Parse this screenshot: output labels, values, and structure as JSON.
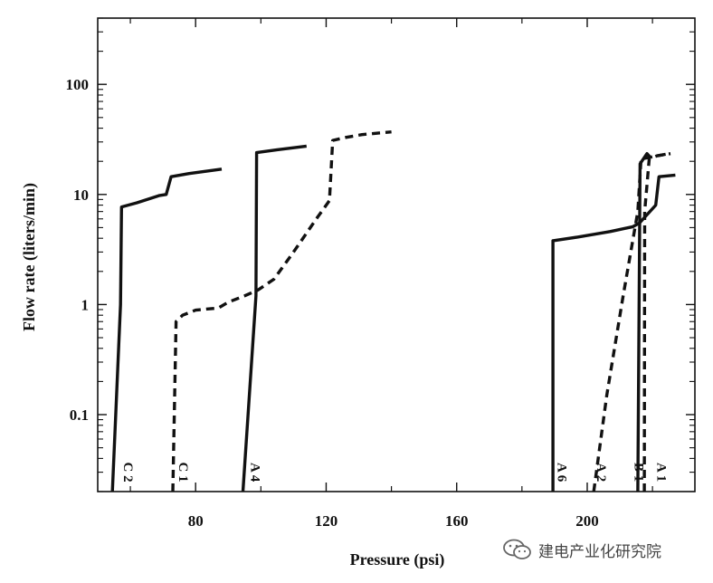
{
  "chart_data": {
    "type": "line",
    "title": "",
    "xlabel": "Pressure (psi)",
    "ylabel": "Flow rate (liters/min)",
    "xlim": [
      50,
      233
    ],
    "ylim": [
      0.02,
      400
    ],
    "yscale": "log",
    "xticks": [
      {
        "value": 80,
        "label": "80"
      },
      {
        "value": 120,
        "label": "120"
      },
      {
        "value": 160,
        "label": "160"
      },
      {
        "value": 200,
        "label": "200"
      }
    ],
    "yticks": [
      {
        "value": 0.1,
        "label": "0.1"
      },
      {
        "value": 1,
        "label": "1"
      },
      {
        "value": 10,
        "label": "10"
      },
      {
        "value": 100,
        "label": "100"
      }
    ],
    "series": [
      {
        "name": "C 2",
        "style": "solid",
        "label_at": [
          58,
          0.03
        ],
        "points": [
          [
            54.5,
            0.02
          ],
          [
            57,
            1
          ],
          [
            57.3,
            7.7
          ],
          [
            62,
            8.4
          ],
          [
            69,
            9.8
          ],
          [
            71,
            10
          ],
          [
            72.5,
            14.5
          ],
          [
            78,
            15.5
          ],
          [
            88,
            17
          ]
        ]
      },
      {
        "name": "C 1",
        "style": "dashed",
        "label_at": [
          75,
          0.03
        ],
        "points": [
          [
            73,
            0.02
          ],
          [
            74,
            0.7
          ],
          [
            76,
            0.8
          ],
          [
            80,
            0.89
          ],
          [
            87,
            0.93
          ],
          [
            90,
            1.05
          ],
          [
            95,
            1.2
          ],
          [
            99,
            1.35
          ],
          [
            104,
            1.7
          ],
          [
            110,
            3
          ],
          [
            117,
            6
          ],
          [
            121,
            8.8
          ],
          [
            122,
            31
          ],
          [
            126,
            33
          ],
          [
            131,
            35
          ],
          [
            140,
            37
          ]
        ]
      },
      {
        "name": "A 4",
        "style": "solid",
        "label_at": [
          97,
          0.03
        ],
        "points": [
          [
            94.5,
            0.02
          ],
          [
            98.5,
            1.2
          ],
          [
            98.7,
            24
          ],
          [
            105,
            25.5
          ],
          [
            114,
            27.5
          ]
        ]
      },
      {
        "name": "A 6",
        "style": "solid",
        "label_at": [
          191,
          0.03
        ],
        "points": [
          [
            189.5,
            0.02
          ],
          [
            189.5,
            3.8
          ],
          [
            197,
            4.1
          ],
          [
            207,
            4.6
          ],
          [
            214,
            5.1
          ],
          [
            216,
            5.5
          ],
          [
            221,
            8
          ],
          [
            222,
            14.5
          ],
          [
            227,
            15
          ]
        ]
      },
      {
        "name": "A 2",
        "style": "dashed",
        "label_at": [
          203,
          0.03
        ],
        "points": [
          [
            202,
            0.02
          ],
          [
            206,
            0.15
          ],
          [
            211,
            1.2
          ],
          [
            215.5,
            7
          ],
          [
            216.5,
            21
          ],
          [
            220,
            22
          ],
          [
            225,
            23.5
          ]
        ]
      },
      {
        "name": "B 1",
        "style": "solid",
        "label_at": [
          214.5,
          0.03
        ],
        "points": [
          [
            215.5,
            0.02
          ],
          [
            216.2,
            19
          ],
          [
            218.3,
            23.5
          ],
          [
            219.5,
            21.5
          ]
        ]
      },
      {
        "name": "A 1",
        "style": "dashed",
        "label_at": [
          221.5,
          0.03
        ],
        "points": [
          [
            217.5,
            0.02
          ],
          [
            217.6,
            7
          ],
          [
            219,
            21
          ],
          [
            221.5,
            22.5
          ],
          [
            225.5,
            23.5
          ]
        ]
      }
    ]
  },
  "watermark": {
    "text": "建电产业化研究院",
    "icon": "wechat-icon"
  }
}
